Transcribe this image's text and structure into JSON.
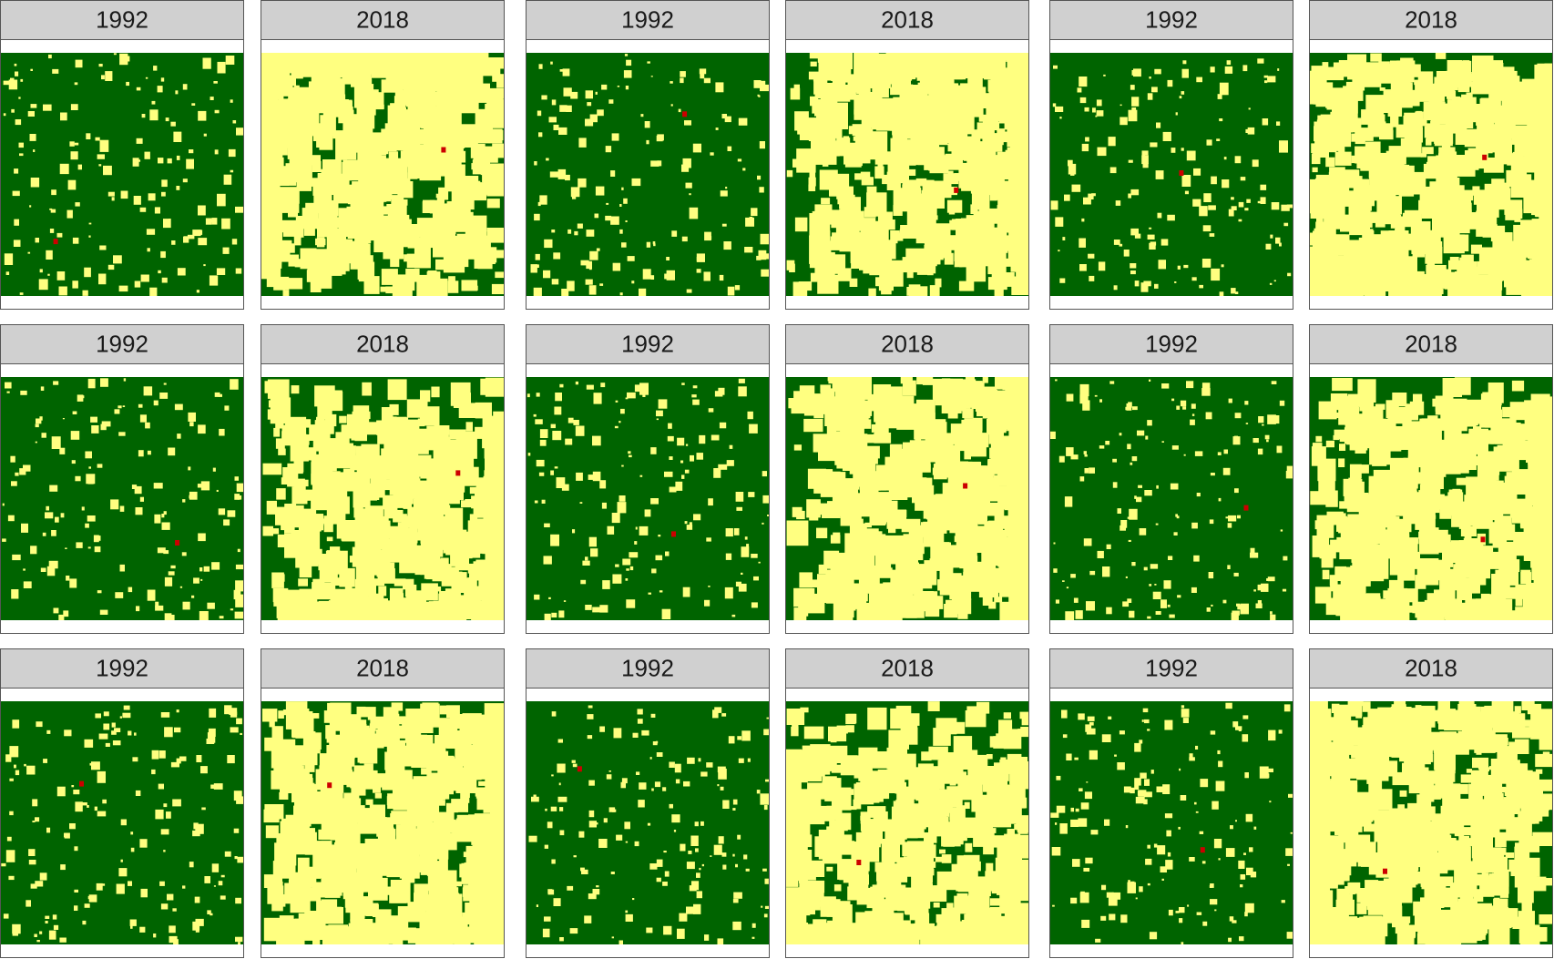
{
  "panels": [
    "1992",
    "2018",
    "1992",
    "2018",
    "1992",
    "2018",
    "1992",
    "2018",
    "1992",
    "2018",
    "1992",
    "2018",
    "1992",
    "2018",
    "1992",
    "2018",
    "1992",
    "2018"
  ]
}
